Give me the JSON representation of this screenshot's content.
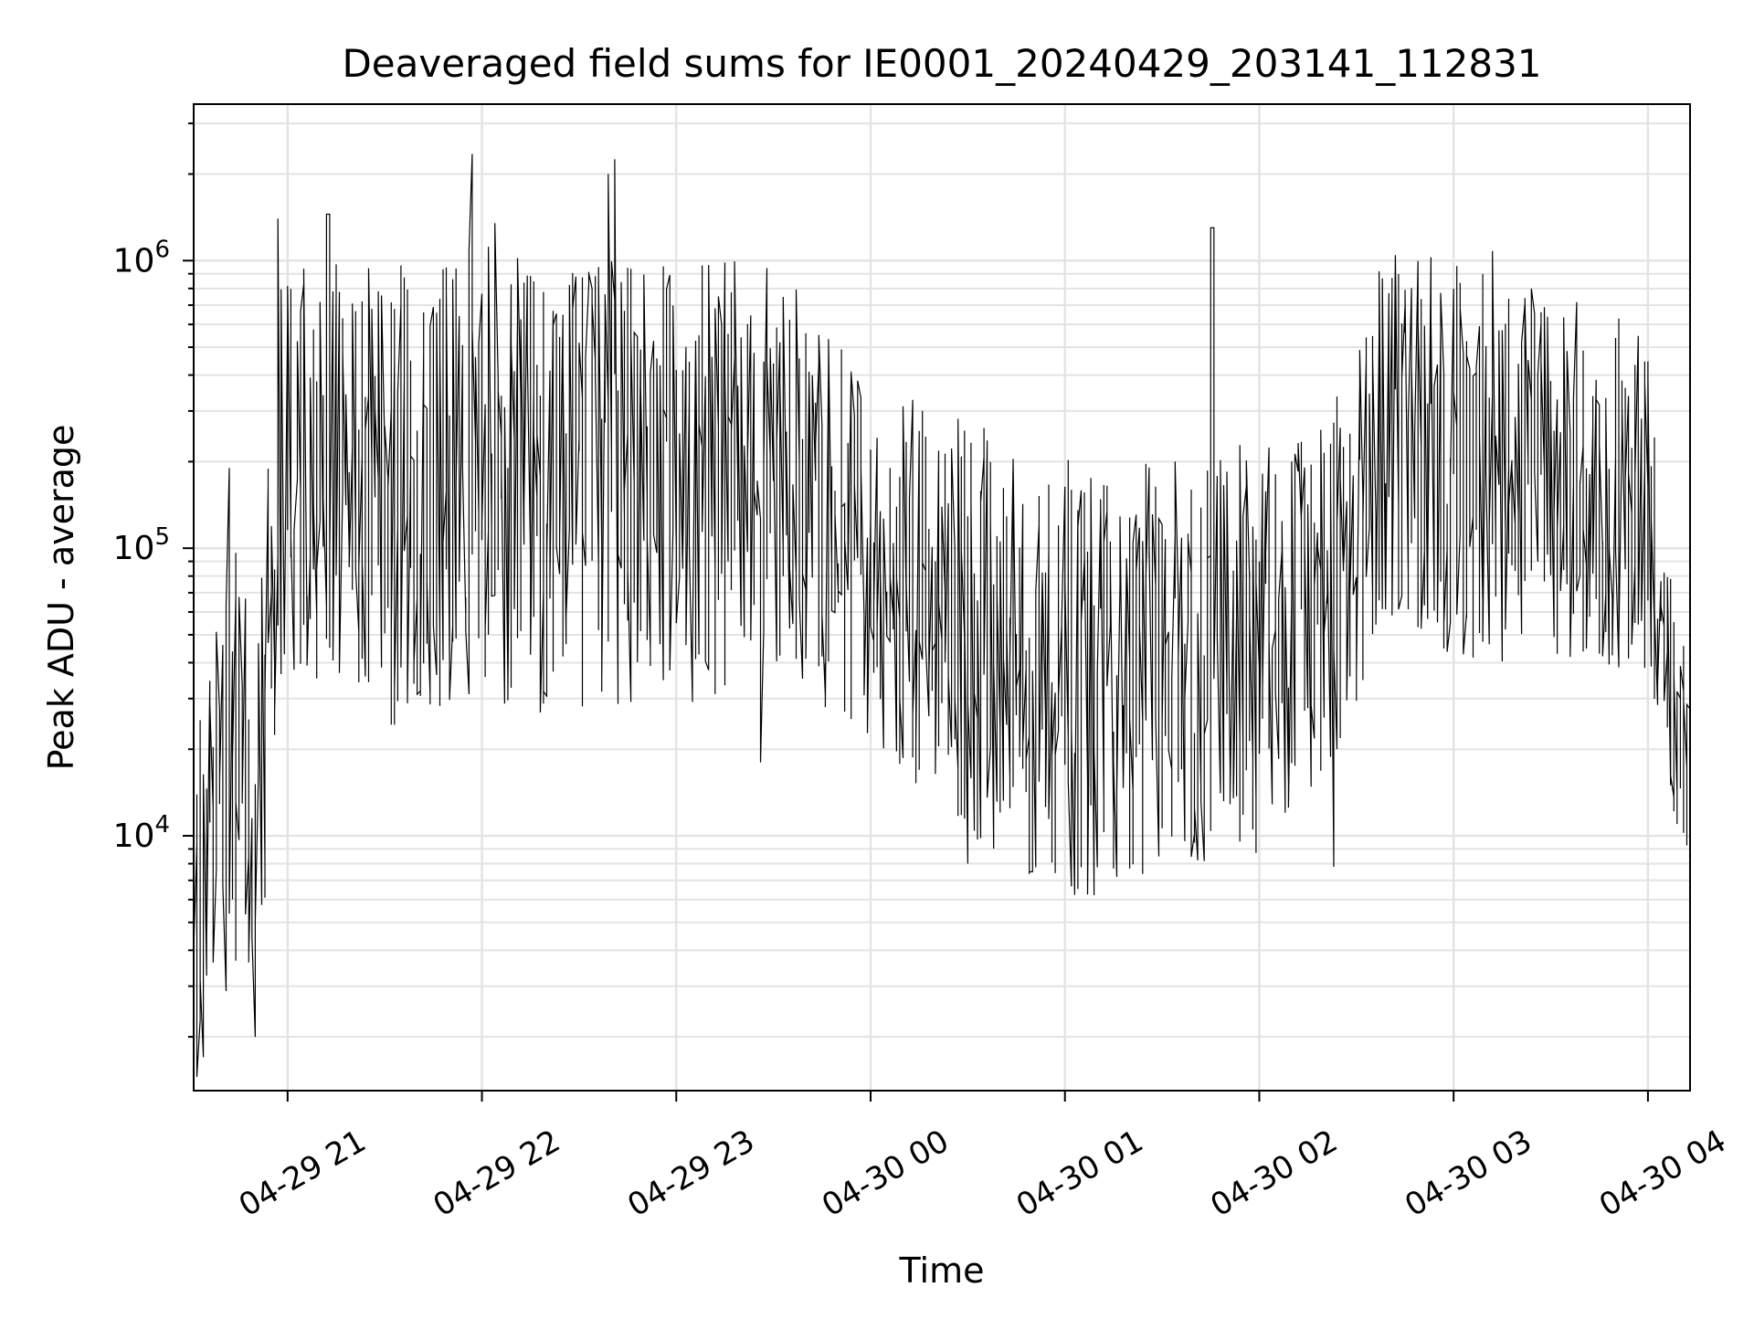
{
  "chart_data": {
    "type": "line",
    "title": "Deaveraged field sums for IE0001_20240429_203141_112831",
    "xlabel": "Time",
    "ylabel": "Peak ADU - average",
    "yscale": "log",
    "ylim": [
      1300,
      3500000
    ],
    "xlim": [
      "2024-04-29 20:31",
      "2024-04-30 04:13"
    ],
    "x_tick_labels": [
      "04-29 21",
      "04-29 22",
      "04-29 23",
      "04-30 00",
      "04-30 01",
      "04-30 02",
      "04-30 03",
      "04-30 04"
    ],
    "y_tick_labels": [
      {
        "base": "10",
        "exp": "4"
      },
      {
        "base": "10",
        "exp": "5"
      },
      {
        "base": "10",
        "exp": "6"
      }
    ],
    "grid": true,
    "line_color": "#000000",
    "grid_color": "#e3e3e3",
    "series_envelope": {
      "x": [
        "2024-04-29 20:31",
        "2024-04-29 20:40",
        "2024-04-29 20:45",
        "2024-04-29 20:50",
        "2024-04-29 20:55",
        "2024-04-29 21:00",
        "2024-04-29 21:30",
        "2024-04-29 22:00",
        "2024-04-29 22:30",
        "2024-04-29 23:00",
        "2024-04-29 23:30",
        "2024-04-30 00:00",
        "2024-04-30 00:30",
        "2024-04-30 01:00",
        "2024-04-30 01:30",
        "2024-04-30 02:00",
        "2024-04-30 02:20",
        "2024-04-30 02:40",
        "2024-04-30 03:00",
        "2024-04-30 03:30",
        "2024-04-30 04:00",
        "2024-04-30 04:05",
        "2024-04-30 04:13"
      ],
      "center": [
        5000,
        12000,
        20000,
        8000,
        60000,
        200000,
        150000,
        180000,
        160000,
        170000,
        200000,
        90000,
        55000,
        35000,
        40000,
        45000,
        60000,
        250000,
        200000,
        180000,
        150000,
        40000,
        18000
      ],
      "spread": [
        0.4,
        0.5,
        0.5,
        0.4,
        0.5,
        0.45,
        0.5,
        0.5,
        0.5,
        0.5,
        0.45,
        0.4,
        0.45,
        0.5,
        0.45,
        0.45,
        0.4,
        0.4,
        0.45,
        0.4,
        0.4,
        0.3,
        0.2
      ]
    },
    "spikes": [
      {
        "x": "2024-04-29 20:58",
        "y": 1400000
      },
      {
        "x": "2024-04-29 21:13",
        "y": 1450000
      },
      {
        "x": "2024-04-29 21:57",
        "y": 2350000
      },
      {
        "x": "2024-04-29 22:05",
        "y": 1350000
      },
      {
        "x": "2024-04-29 22:40",
        "y": 2000000
      },
      {
        "x": "2024-04-29 22:42",
        "y": 2250000
      },
      {
        "x": "2024-04-30 01:46",
        "y": 1300000
      },
      {
        "x": "2024-04-30 03:13",
        "y": 1080000
      },
      {
        "x": "2024-04-29 20:42",
        "y": 190000
      },
      {
        "x": "2024-04-29 23:27",
        "y": 18000
      },
      {
        "x": "2024-04-30 00:30",
        "y": 8000
      },
      {
        "x": "2024-04-30 00:50",
        "y": 7500
      },
      {
        "x": "2024-04-30 02:23",
        "y": 7800
      },
      {
        "x": "2024-04-29 20:34",
        "y": 1700
      },
      {
        "x": "2024-04-29 20:50",
        "y": 2000
      }
    ]
  }
}
